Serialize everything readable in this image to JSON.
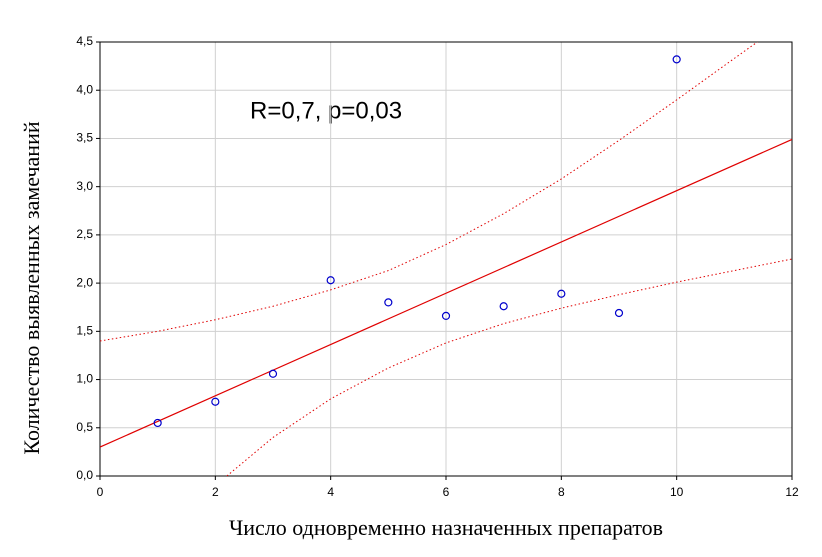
{
  "chart_data": {
    "type": "scatter",
    "annotation": "R=0,7, p=0,03",
    "xlabel": "Число одновременно назначенных препаратов",
    "ylabel": "Количество выявленных замечаний",
    "x": [
      1,
      2,
      3,
      4,
      5,
      6,
      7,
      8,
      9,
      10
    ],
    "values": [
      0.55,
      0.77,
      1.06,
      2.03,
      1.8,
      1.66,
      1.76,
      1.89,
      1.69,
      4.32
    ],
    "color": "#0000cc",
    "lines": [
      {
        "x": [
          0,
          12
        ],
        "values": [
          0.3,
          3.49
        ],
        "color": "#e00000",
        "dash": false
      },
      {
        "x": [
          0,
          1,
          2,
          3,
          4,
          5,
          6,
          7,
          8,
          9,
          10,
          11,
          11.4
        ],
        "values": [
          1.4,
          1.5,
          1.62,
          1.76,
          1.93,
          2.13,
          2.4,
          2.72,
          3.08,
          3.48,
          3.9,
          4.33,
          4.5
        ],
        "color": "#e00000",
        "dash": true
      },
      {
        "x": [
          2.2,
          3,
          4,
          5,
          6,
          7,
          8,
          9,
          10,
          11,
          12
        ],
        "values": [
          0,
          0.4,
          0.8,
          1.12,
          1.38,
          1.58,
          1.74,
          1.88,
          2.01,
          2.13,
          2.25
        ],
        "color": "#e00000",
        "dash": true
      }
    ],
    "xlim": [
      0,
      12
    ],
    "xticks": [
      0,
      2,
      4,
      6,
      8,
      10,
      12
    ],
    "ylim": [
      0,
      4.5
    ],
    "yticks": [
      {
        "value": 0,
        "label": "0,0"
      },
      {
        "value": 0.5,
        "label": "0,5"
      },
      {
        "value": 1,
        "label": "1,0"
      },
      {
        "value": 1.5,
        "label": "1,5"
      },
      {
        "value": 2,
        "label": "2,0"
      },
      {
        "value": 2.5,
        "label": "2,5"
      },
      {
        "value": 3,
        "label": "3,0"
      },
      {
        "value": 3.5,
        "label": "3,5"
      },
      {
        "value": 4,
        "label": "4,0"
      },
      {
        "value": 4.5,
        "label": "4,5"
      }
    ],
    "grid": true
  }
}
